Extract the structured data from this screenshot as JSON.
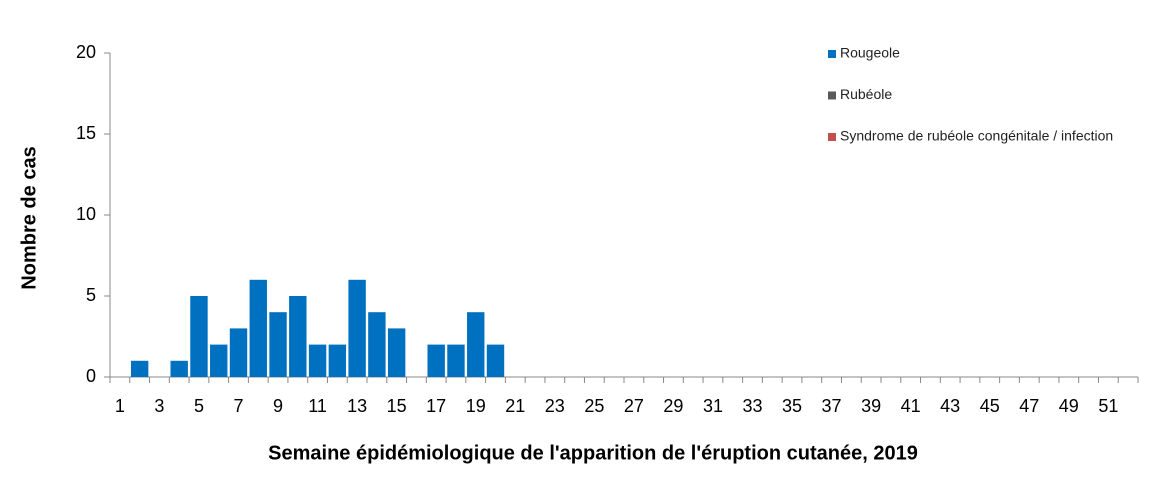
{
  "chart_data": {
    "type": "bar",
    "x_label": "Semaine épidémiologique de l'apparition de l'éruption cutanée, 2019",
    "y_label": "Nombre de cas",
    "categories": [
      1,
      null,
      3,
      null,
      5,
      null,
      7,
      null,
      9,
      null,
      11,
      null,
      13,
      null,
      15,
      null,
      17,
      null,
      19,
      null,
      21,
      null,
      23,
      null,
      25,
      null,
      27,
      null,
      29,
      null,
      31,
      null,
      33,
      null,
      35,
      null,
      37,
      null,
      39,
      null,
      41,
      null,
      43,
      null,
      45,
      null,
      47,
      null,
      49,
      null,
      51,
      null
    ],
    "series": [
      {
        "name": "Rougeole",
        "color": "#0070c0",
        "values": [
          0,
          1,
          0,
          1,
          5,
          2,
          3,
          6,
          4,
          5,
          2,
          2,
          6,
          4,
          3,
          0,
          2,
          2,
          4,
          2,
          0,
          0,
          0,
          0,
          0,
          0,
          0,
          0,
          0,
          0,
          0,
          0,
          0,
          0,
          0,
          0,
          0,
          0,
          0,
          0,
          0,
          0,
          0,
          0,
          0,
          0,
          0,
          0,
          0,
          0,
          0,
          0
        ]
      },
      {
        "name": "Rubéole",
        "color": "#595959",
        "values": [
          0,
          0,
          0,
          0,
          0,
          0,
          0,
          0,
          0,
          0,
          0,
          0,
          0,
          0,
          0,
          0,
          0,
          0,
          0,
          0,
          0,
          0,
          0,
          0,
          0,
          0,
          0,
          0,
          0,
          0,
          0,
          0,
          0,
          0,
          0,
          0,
          0,
          0,
          0,
          0,
          0,
          0,
          0,
          0,
          0,
          0,
          0,
          0,
          0,
          0,
          0,
          0
        ]
      },
      {
        "name": "Syndrome de rubéole congénitale / infection",
        "color": "#c0504d",
        "values": [
          0,
          0,
          0,
          0,
          0,
          0,
          0,
          0,
          0,
          0,
          0,
          0,
          0,
          0,
          0,
          0,
          0,
          0,
          0,
          0,
          0,
          0,
          0,
          0,
          0,
          0,
          0,
          0,
          0,
          0,
          0,
          0,
          0,
          0,
          0,
          0,
          0,
          0,
          0,
          0,
          0,
          0,
          0,
          0,
          0,
          0,
          0,
          0,
          0,
          0,
          0,
          0
        ]
      }
    ],
    "ylim": [
      0,
      20
    ],
    "yticks": [
      0,
      5,
      10,
      15,
      20
    ],
    "grid": false,
    "legend": "upper right"
  }
}
